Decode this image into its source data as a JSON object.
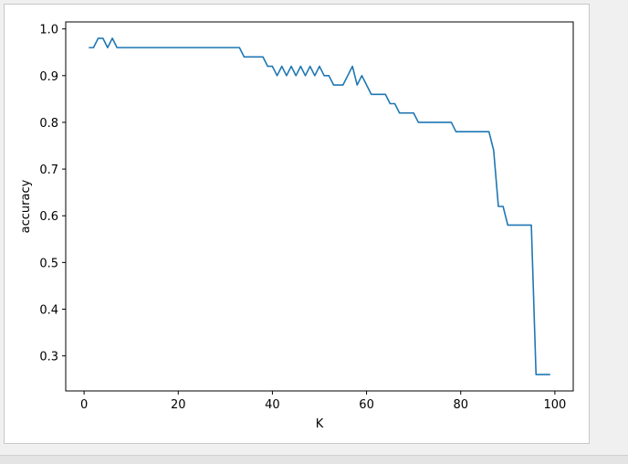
{
  "chart_data": {
    "type": "line",
    "title": "",
    "xlabel": "K",
    "ylabel": "accuracy",
    "xlim": [
      -3.9,
      103.9
    ],
    "ylim": [
      0.225,
      1.015
    ],
    "xticks": [
      0,
      20,
      40,
      60,
      80,
      100
    ],
    "yticks": [
      0.3,
      0.4,
      0.5,
      0.6,
      0.7,
      0.8,
      0.9,
      1.0
    ],
    "xtick_labels": [
      "0",
      "20",
      "40",
      "60",
      "80",
      "100"
    ],
    "ytick_labels": [
      "0.3",
      "0.4",
      "0.5",
      "0.6",
      "0.7",
      "0.8",
      "0.9",
      "1.0"
    ],
    "grid": false,
    "legend": false,
    "line_color": "#1f77b4",
    "series": [
      {
        "x": [
          1,
          2,
          3,
          4,
          5,
          6,
          7,
          8,
          9,
          10,
          11,
          12,
          13,
          14,
          15,
          16,
          17,
          18,
          19,
          20,
          21,
          22,
          23,
          24,
          25,
          26,
          27,
          28,
          29,
          30,
          31,
          32,
          33,
          34,
          35,
          36,
          37,
          38,
          39,
          40,
          41,
          42,
          43,
          44,
          45,
          46,
          47,
          48,
          49,
          50,
          51,
          52,
          53,
          54,
          55,
          56,
          57,
          58,
          59,
          60,
          61,
          62,
          63,
          64,
          65,
          66,
          67,
          68,
          69,
          70,
          71,
          72,
          73,
          74,
          75,
          76,
          77,
          78,
          79,
          80,
          81,
          82,
          83,
          84,
          85,
          86,
          87,
          88,
          89,
          90,
          91,
          92,
          93,
          94,
          95,
          96,
          97,
          98,
          99
        ],
        "values": [
          0.96,
          0.96,
          0.98,
          0.98,
          0.96,
          0.98,
          0.96,
          0.96,
          0.96,
          0.96,
          0.96,
          0.96,
          0.96,
          0.96,
          0.96,
          0.96,
          0.96,
          0.96,
          0.96,
          0.96,
          0.96,
          0.96,
          0.96,
          0.96,
          0.96,
          0.96,
          0.96,
          0.96,
          0.96,
          0.96,
          0.96,
          0.96,
          0.96,
          0.94,
          0.94,
          0.94,
          0.94,
          0.94,
          0.92,
          0.92,
          0.9,
          0.92,
          0.9,
          0.92,
          0.9,
          0.92,
          0.9,
          0.92,
          0.9,
          0.92,
          0.9,
          0.9,
          0.88,
          0.88,
          0.88,
          0.9,
          0.92,
          0.88,
          0.9,
          0.88,
          0.86,
          0.86,
          0.86,
          0.86,
          0.84,
          0.84,
          0.82,
          0.82,
          0.82,
          0.82,
          0.8,
          0.8,
          0.8,
          0.8,
          0.8,
          0.8,
          0.8,
          0.8,
          0.78,
          0.78,
          0.78,
          0.78,
          0.78,
          0.78,
          0.78,
          0.78,
          0.74,
          0.62,
          0.62,
          0.58,
          0.58,
          0.58,
          0.58,
          0.58,
          0.58,
          0.26,
          0.26,
          0.26,
          0.26
        ]
      }
    ]
  }
}
